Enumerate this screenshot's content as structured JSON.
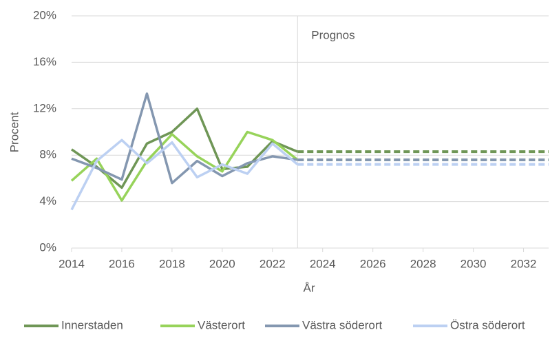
{
  "chart_data": {
    "type": "line",
    "y_label": "Procent",
    "x_label": "År",
    "annotation": "Prognos",
    "forecast_start": 2023,
    "x": [
      2014,
      2015,
      2016,
      2017,
      2018,
      2019,
      2020,
      2021,
      2022,
      2023
    ],
    "forecast_x": [
      2023,
      2033
    ],
    "series": [
      {
        "name": "Innerstaden",
        "color": "#6f9656",
        "values": [
          8.5,
          7.0,
          5.2,
          9.0,
          10.0,
          12.0,
          6.8,
          7.0,
          9.2,
          8.3
        ],
        "forecast": [
          8.3,
          8.3
        ]
      },
      {
        "name": "Västerort",
        "color": "#97d35a",
        "values": [
          5.8,
          7.7,
          4.1,
          7.5,
          9.8,
          7.9,
          6.6,
          10.0,
          9.3,
          7.6
        ],
        "forecast": [
          7.6,
          7.6
        ]
      },
      {
        "name": "Västra söderort",
        "color": "#8497b0",
        "values": [
          7.7,
          6.9,
          5.9,
          13.3,
          5.6,
          7.5,
          6.2,
          7.3,
          7.9,
          7.6
        ],
        "forecast": [
          7.6,
          7.6
        ]
      },
      {
        "name": "Östra söderort",
        "color": "#bcd0f2",
        "values": [
          3.3,
          7.5,
          9.3,
          7.3,
          9.1,
          6.1,
          7.2,
          6.4,
          9.0,
          7.2
        ],
        "forecast": [
          7.2,
          7.2
        ]
      }
    ],
    "xlim": [
      2014,
      2033
    ],
    "xticks": [
      2014,
      2016,
      2018,
      2020,
      2022,
      2024,
      2026,
      2028,
      2030,
      2032
    ],
    "ylim": [
      0,
      20
    ],
    "yticks": [
      {
        "value": 0,
        "label": "0%"
      },
      {
        "value": 4,
        "label": "4%"
      },
      {
        "value": 8,
        "label": "8%"
      },
      {
        "value": 12,
        "label": "12%"
      },
      {
        "value": 16,
        "label": "16%"
      },
      {
        "value": 20,
        "label": "20%"
      }
    ],
    "grid": true
  }
}
